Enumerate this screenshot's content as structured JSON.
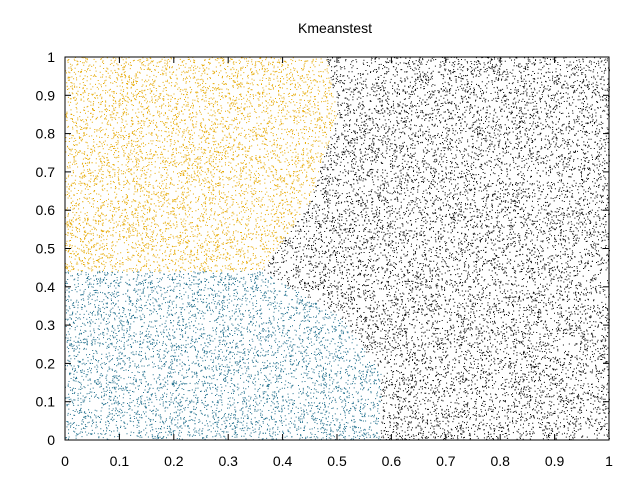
{
  "chart_data": {
    "type": "scatter",
    "title": "Kmeanstest",
    "xlabel": "",
    "ylabel": "",
    "xlim": [
      0,
      1
    ],
    "ylim": [
      0,
      1
    ],
    "x_ticks": [
      "0",
      "0.1",
      "0.2",
      "0.3",
      "0.4",
      "0.5",
      "0.6",
      "0.7",
      "0.8",
      "0.9",
      "1"
    ],
    "y_ticks": [
      "0",
      "0.1",
      "0.2",
      "0.3",
      "0.4",
      "0.5",
      "0.6",
      "0.7",
      "0.8",
      "0.9",
      "1"
    ],
    "grid": false,
    "legend": "none",
    "series": [
      {
        "color": "#e6a800",
        "region": "upper-left cluster",
        "x_range": [
          0,
          0.5
        ],
        "y_range": [
          0.44,
          1
        ],
        "boundary_points": [
          [
            0,
            0.44
          ],
          [
            0.36,
            0.44
          ],
          [
            0.45,
            0.62
          ],
          [
            0.5,
            0.85
          ],
          [
            0.48,
            1
          ],
          [
            0,
            1
          ]
        ]
      },
      {
        "color": "#1f6e8c",
        "region": "lower-left cluster",
        "x_range": [
          0,
          0.58
        ],
        "y_range": [
          0,
          0.44
        ],
        "boundary_points": [
          [
            0,
            0
          ],
          [
            0.58,
            0
          ],
          [
            0.58,
            0.18
          ],
          [
            0.5,
            0.33
          ],
          [
            0.36,
            0.44
          ],
          [
            0,
            0.44
          ]
        ]
      },
      {
        "color": "#000000",
        "region": "right cluster",
        "x_range": [
          0.36,
          1
        ],
        "y_range": [
          0,
          1
        ]
      }
    ],
    "points_per_cluster_estimate": 12000
  }
}
